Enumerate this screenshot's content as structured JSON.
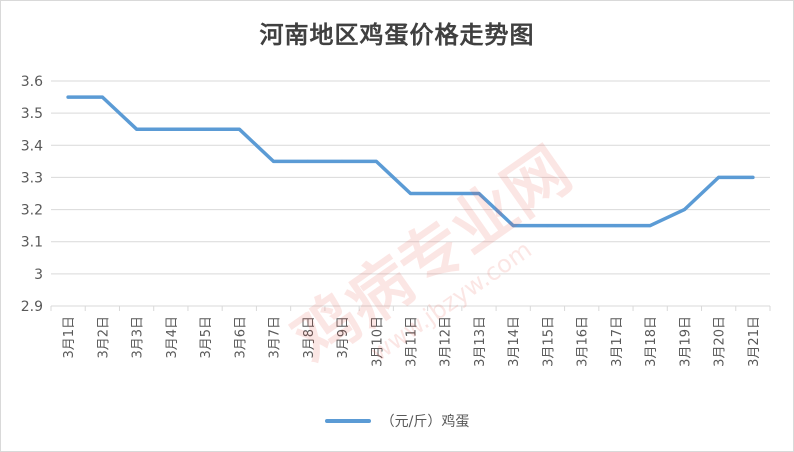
{
  "chart_data": {
    "type": "line",
    "title": "河南地区鸡蛋价格走势图",
    "categories": [
      "3月1日",
      "3月2日",
      "3月3日",
      "3月4日",
      "3月5日",
      "3月6日",
      "3月7日",
      "3月8日",
      "3月9日",
      "3月10日",
      "3月11日",
      "3月12日",
      "3月13日",
      "3月14日",
      "3月15日",
      "3月16日",
      "3月17日",
      "3月18日",
      "3月19日",
      "3月20日",
      "3月21日"
    ],
    "series": [
      {
        "name": "（元/斤）鸡蛋",
        "color": "#5b9bd5",
        "values": [
          3.55,
          3.55,
          3.45,
          3.45,
          3.45,
          3.45,
          3.35,
          3.35,
          3.35,
          3.35,
          3.25,
          3.25,
          3.25,
          3.15,
          3.15,
          3.15,
          3.15,
          3.15,
          3.2,
          3.3,
          3.3
        ]
      }
    ],
    "ylim": [
      2.9,
      3.6
    ],
    "yticks": [
      "2.9",
      "3",
      "3.1",
      "3.2",
      "3.3",
      "3.4",
      "3.5",
      "3.6"
    ],
    "grid": true,
    "legend_position": "bottom"
  },
  "watermark": {
    "text": "鸡病专业网",
    "url": "www.jbzyw.com",
    "color": "#e8433a"
  }
}
